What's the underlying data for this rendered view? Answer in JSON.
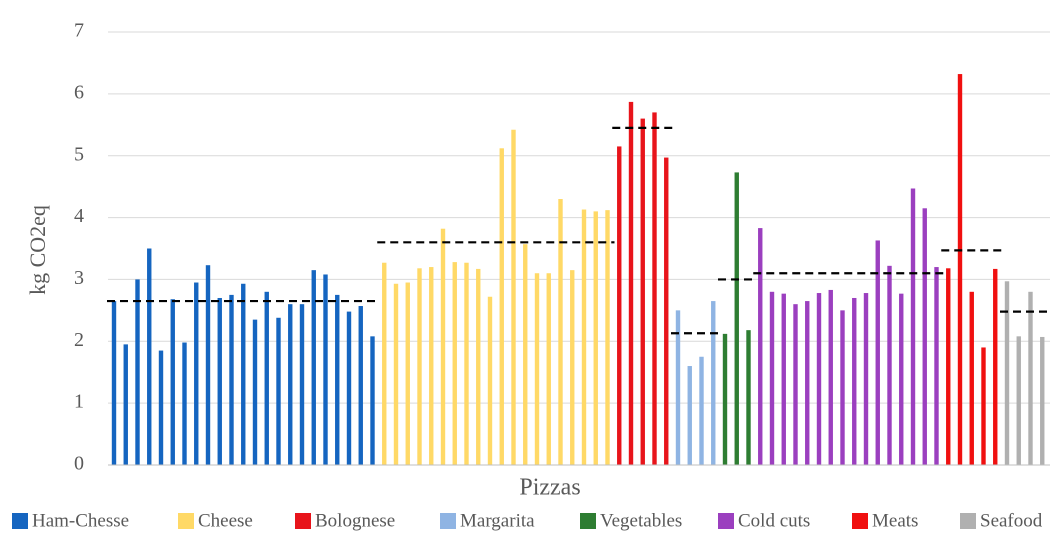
{
  "chart_data": {
    "type": "bar",
    "y_label": "kg CO2eq",
    "x_label": "Pizzas",
    "ylim": [
      0,
      7
    ],
    "yticks": [
      0,
      1,
      2,
      3,
      4,
      5,
      6,
      7
    ],
    "grid": true,
    "series": [
      {
        "name": "Ham-Chesse",
        "color": "#1565c0",
        "mean": 2.65,
        "values": [
          2.65,
          1.95,
          3.0,
          3.5,
          1.85,
          2.68,
          1.98,
          2.95,
          3.23,
          2.7,
          2.75,
          2.93,
          2.35,
          2.8,
          2.38,
          2.6,
          2.6,
          3.15,
          3.08,
          2.75,
          2.48,
          2.57,
          2.08
        ]
      },
      {
        "name": "Cheese",
        "color": "#ffd966",
        "mean": 3.6,
        "values": [
          3.27,
          2.93,
          2.95,
          3.18,
          3.2,
          3.82,
          3.28,
          3.27,
          3.17,
          2.72,
          5.12,
          5.42,
          3.57,
          3.1,
          3.1,
          4.3,
          3.15,
          4.13,
          4.1,
          4.12
        ]
      },
      {
        "name": "Bolognese",
        "color": "#e8141b",
        "mean": 5.45,
        "values": [
          5.15,
          5.87,
          5.6,
          5.7,
          4.97
        ]
      },
      {
        "name": "Margarita",
        "color": "#8fb4e3",
        "mean": 2.13,
        "values": [
          2.5,
          1.6,
          1.75,
          2.65
        ]
      },
      {
        "name": "Vegetables",
        "color": "#2e7d32",
        "mean": 3.0,
        "values": [
          2.12,
          4.73,
          2.18
        ]
      },
      {
        "name": "Cold cuts",
        "color": "#9b3fbf",
        "mean": 3.1,
        "values": [
          3.83,
          2.8,
          2.77,
          2.6,
          2.65,
          2.78,
          2.83,
          2.5,
          2.7,
          2.78,
          3.63,
          3.22,
          2.77,
          4.47,
          4.15,
          3.2
        ]
      },
      {
        "name": "Meats",
        "color": "#f01010",
        "mean": 3.47,
        "values": [
          3.18,
          6.32,
          2.8,
          1.9,
          3.17
        ]
      },
      {
        "name": "Seafood",
        "color": "#b0b0b0",
        "mean": 2.48,
        "values": [
          2.97,
          2.08,
          2.8,
          2.07
        ]
      }
    ]
  }
}
